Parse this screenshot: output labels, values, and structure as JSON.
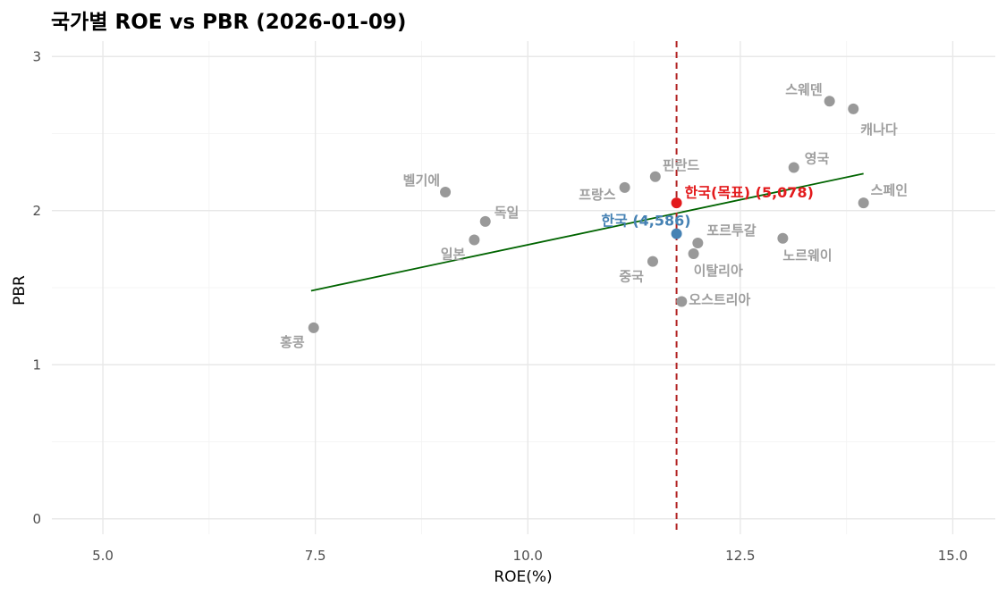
{
  "chart_data": {
    "type": "scatter",
    "title": "국가별 ROE vs PBR (2026-01-09)",
    "xlabel": "ROE(%)",
    "ylabel": "PBR",
    "xlim": [
      4.4,
      15.5
    ],
    "ylim": [
      -0.1,
      3.1
    ],
    "x_ticks": [
      5.0,
      7.5,
      10.0,
      12.5,
      15.0
    ],
    "x_tick_labels": [
      "5.0",
      "7.5",
      "10.0",
      "12.5",
      "15.0"
    ],
    "y_ticks": [
      0,
      1,
      2,
      3
    ],
    "y_tick_labels": [
      "0",
      "1",
      "2",
      "3"
    ],
    "grid": true,
    "points": [
      {
        "label": "홍콩",
        "x": 7.48,
        "y": 1.24
      },
      {
        "label": "일본",
        "x": 9.37,
        "y": 1.81
      },
      {
        "label": "독일",
        "x": 9.5,
        "y": 1.93
      },
      {
        "label": "벨기에",
        "x": 9.03,
        "y": 2.12
      },
      {
        "label": "프랑스",
        "x": 11.14,
        "y": 2.15
      },
      {
        "label": "핀란드",
        "x": 11.5,
        "y": 2.22
      },
      {
        "label": "중국",
        "x": 11.47,
        "y": 1.67
      },
      {
        "label": "오스트리아",
        "x": 11.81,
        "y": 1.41
      },
      {
        "label": "이탈리아",
        "x": 11.95,
        "y": 1.72
      },
      {
        "label": "포르투갈",
        "x": 12.0,
        "y": 1.79
      },
      {
        "label": "노르웨이",
        "x": 13.0,
        "y": 1.82
      },
      {
        "label": "영국",
        "x": 13.13,
        "y": 2.28
      },
      {
        "label": "스페인",
        "x": 13.95,
        "y": 2.05
      },
      {
        "label": "스웨덴",
        "x": 13.55,
        "y": 2.71
      },
      {
        "label": "캐나다",
        "x": 13.83,
        "y": 2.66
      }
    ],
    "highlights": [
      {
        "label": "한국 (4,586)",
        "x": 11.75,
        "y": 1.85,
        "color": "#4682b4"
      },
      {
        "label": "한국(목표) (5,078)",
        "x": 11.75,
        "y": 2.05,
        "color": "#e31a1c"
      }
    ],
    "reference_line": {
      "x": 11.75,
      "color": "#b22222",
      "style": "dashed"
    },
    "trend_line": {
      "x": [
        7.45,
        13.95
      ],
      "y": [
        1.48,
        2.24
      ],
      "color": "#006400"
    },
    "colors": {
      "point": "#999999",
      "label": "#9e9e9e"
    }
  }
}
